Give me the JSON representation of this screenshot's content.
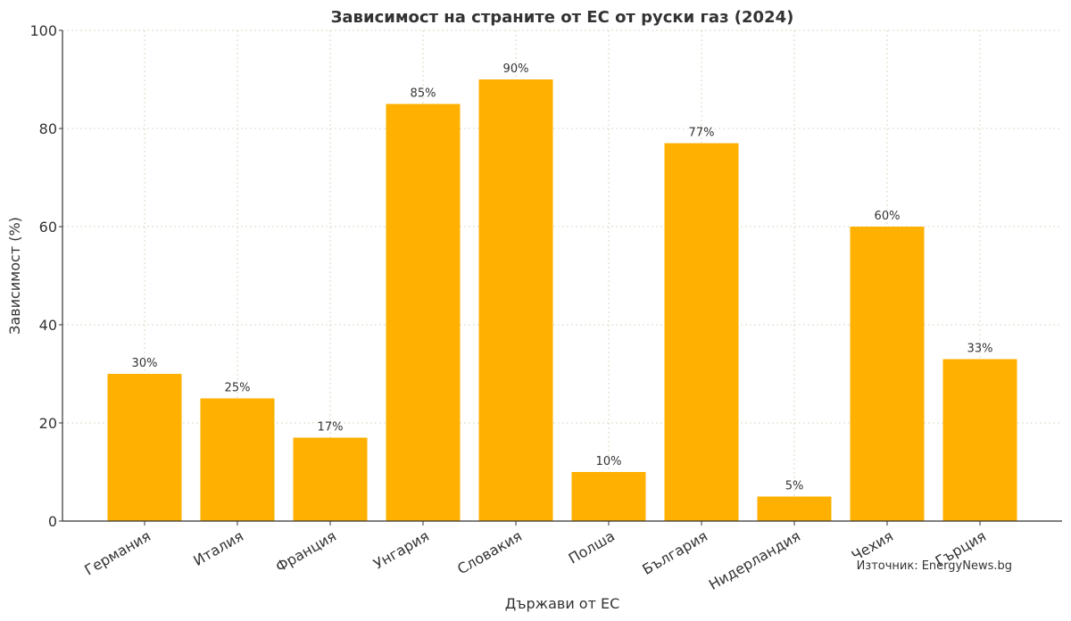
{
  "chart_data": {
    "type": "bar",
    "title": "Зависимост на страните от ЕС от руски газ (2024)",
    "xlabel": "Държави от ЕС",
    "ylabel": "Зависимост (%)",
    "categories": [
      "Германия",
      "Италия",
      "Франция",
      "Унгария",
      "Словакия",
      "Полша",
      "България",
      "Нидерландия",
      "Чехия",
      "Гърция"
    ],
    "values": [
      30,
      25,
      17,
      85,
      90,
      10,
      77,
      5,
      60,
      33
    ],
    "value_labels": [
      "30%",
      "25%",
      "17%",
      "85%",
      "90%",
      "10%",
      "77%",
      "5%",
      "60%",
      "33%"
    ],
    "ylim": [
      0,
      100
    ],
    "yticks": [
      0,
      20,
      40,
      60,
      80,
      100
    ],
    "grid": true,
    "bar_color": "#FFB000",
    "source_note": "Източник: EnergyNews.bg"
  }
}
